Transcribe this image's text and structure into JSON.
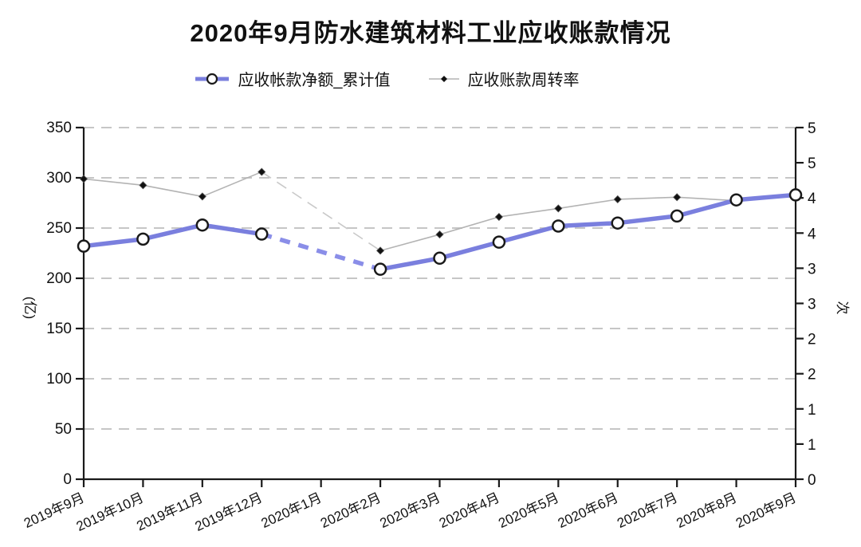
{
  "chart_data": {
    "type": "line",
    "title": "2020年9月防水建筑材料工业应收账款情况",
    "categories": [
      "2019年9月",
      "2019年10月",
      "2019年11月",
      "2019年12月",
      "2020年1月",
      "2020年2月",
      "2020年3月",
      "2020年4月",
      "2020年5月",
      "2020年6月",
      "2020年7月",
      "2020年8月",
      "2020年9月"
    ],
    "series": [
      {
        "name": "应收帐款净额_累计值",
        "axis": "left",
        "type": "line",
        "color": "#7a7fde",
        "gap_color": "#8a8ee8",
        "line_width": 5.5,
        "marker": "circle",
        "marker_fill": "#ffffff",
        "marker_stroke": "#1a1a1a",
        "values": [
          232,
          239,
          253,
          244,
          null,
          209,
          220,
          236,
          252,
          255,
          262,
          278,
          283
        ],
        "gap_style": "dashed"
      },
      {
        "name": "应收账款周转率",
        "axis": "right",
        "type": "line",
        "color": "#b3b3b3",
        "gap_color": "#c9c9c9",
        "line_width": 1.6,
        "marker": "diamond",
        "marker_fill": "#111111",
        "marker_stroke": "#555555",
        "values": [
          4.27,
          4.18,
          4.02,
          4.37,
          null,
          3.25,
          3.48,
          3.73,
          3.85,
          3.98,
          4.01,
          3.96,
          4.05
        ],
        "gap_style": "dashed"
      }
    ],
    "left_axis": {
      "title": "(亿)",
      "min": 0,
      "max": 350,
      "tick_step": 50,
      "tick_labels_bottom_to_top": [
        "0",
        "50",
        "100",
        "150",
        "200",
        "250",
        "300",
        "350"
      ]
    },
    "right_axis": {
      "title": "次",
      "min": 0,
      "max": 5,
      "tick_step": 0.5,
      "tick_labels_bottom_to_top": [
        "0",
        "1",
        "1",
        "2",
        "2",
        "3",
        "3",
        "4",
        "4",
        "5",
        "5"
      ]
    },
    "grid": {
      "horizontal": "dashed",
      "color": "#c6c6c6"
    },
    "axis_color": "#1a1a1a",
    "missing_data_category": "2020年1月"
  }
}
